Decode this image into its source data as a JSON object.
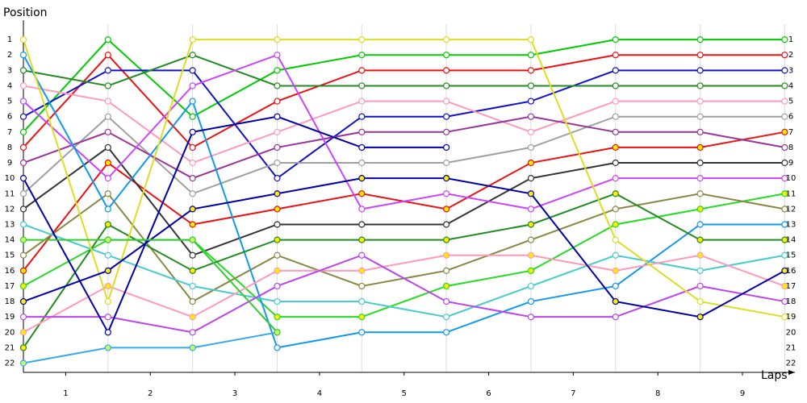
{
  "chart_data": {
    "type": "line",
    "y_axis_label": "Position",
    "x_axis_label": "Laps",
    "x": [
      0,
      1,
      2,
      3,
      4,
      5,
      6,
      7,
      8,
      9
    ],
    "xlim": [
      0,
      9.12
    ],
    "xticks": [
      {
        "value": 0.5,
        "label": "1"
      },
      {
        "value": 1.5,
        "label": "2"
      },
      {
        "value": 2.5,
        "label": "3"
      },
      {
        "value": 3.5,
        "label": "4"
      },
      {
        "value": 4.5,
        "label": "5"
      },
      {
        "value": 5.5,
        "label": "6"
      },
      {
        "value": 6.5,
        "label": "7"
      },
      {
        "value": 7.5,
        "label": "8"
      },
      {
        "value": 8.5,
        "label": "9"
      }
    ],
    "ylim": [
      22.6,
      0
    ],
    "yticks": [
      1,
      2,
      3,
      4,
      5,
      6,
      7,
      8,
      9,
      10,
      11,
      12,
      13,
      14,
      15,
      16,
      17,
      18,
      19,
      20,
      21,
      22
    ],
    "grid": true,
    "series": [
      {
        "color": "#00cc00",
        "marker_fill": "#ffffff",
        "values": [
          7,
          1,
          6,
          3,
          2,
          2,
          2,
          1,
          1,
          1
        ]
      },
      {
        "color": "#ee1111",
        "marker_fill": "#ffffff",
        "values": [
          8,
          2,
          8,
          5,
          3,
          3,
          3,
          2,
          2,
          2
        ]
      },
      {
        "color": "#1111cc",
        "marker_fill": "#ffffff",
        "values": [
          6,
          3,
          3,
          10,
          6,
          6,
          5,
          3,
          3,
          3
        ]
      },
      {
        "color": "#228b22",
        "marker_fill": "#ffffff",
        "values": [
          3,
          4,
          2,
          4,
          4,
          4,
          4,
          4,
          4,
          4
        ]
      },
      {
        "color": "#ff99bb",
        "marker_fill": "#ffffff",
        "values": [
          4,
          5,
          9,
          7,
          5,
          5,
          7,
          5,
          5,
          5
        ]
      },
      {
        "color": "#a0a0a0",
        "marker_fill": "#ffffff",
        "values": [
          11,
          6,
          11,
          9,
          9,
          9,
          8,
          6,
          6,
          6
        ]
      },
      {
        "color": "#ee1111",
        "marker_fill": "#ffee00",
        "values": [
          16,
          9,
          13,
          12,
          11,
          12,
          9,
          8,
          8,
          7
        ]
      },
      {
        "color": "#993399",
        "marker_fill": "#ffffff",
        "values": [
          9,
          7,
          10,
          8,
          7,
          7,
          6,
          7,
          7,
          8
        ]
      },
      {
        "color": "#333333",
        "marker_fill": "#ffffff",
        "values": [
          12,
          8,
          15,
          13,
          13,
          13,
          10,
          9,
          9,
          9
        ]
      },
      {
        "color": "#cc44ff",
        "marker_fill": "#ffffff",
        "values": [
          5,
          10,
          4,
          2,
          12,
          11,
          12,
          10,
          10,
          10
        ]
      },
      {
        "color": "#22dd22",
        "marker_fill": "#ffee00",
        "values": [
          17,
          14,
          14,
          19,
          19,
          17,
          16,
          13,
          12,
          11
        ]
      },
      {
        "color": "#888844",
        "marker_fill": "#ffffff",
        "values": [
          15,
          11,
          18,
          15,
          17,
          16,
          14,
          12,
          11,
          12
        ]
      },
      {
        "color": "#1199ee",
        "marker_fill": "#ffffff",
        "values": [
          2,
          12,
          5,
          21,
          20,
          20,
          18,
          17,
          13,
          13
        ]
      },
      {
        "color": "#228b22",
        "marker_fill": "#ffee00",
        "values": [
          21,
          13,
          16,
          14,
          14,
          14,
          13,
          11,
          14,
          14
        ]
      },
      {
        "color": "#44cccc",
        "marker_fill": "#ffffff",
        "values": [
          13,
          15,
          17,
          18,
          18,
          19,
          17,
          15,
          16,
          15
        ]
      },
      {
        "color": "#ff99bb",
        "marker_fill": "#ffee00",
        "values": [
          20,
          17,
          19,
          16,
          16,
          15,
          15,
          16,
          15,
          17
        ]
      },
      {
        "color": "#bb44ee",
        "marker_fill": "#ffffff",
        "values": [
          19,
          19,
          20,
          17,
          15,
          18,
          19,
          19,
          17,
          18
        ]
      },
      {
        "color": "#dddd22",
        "marker_fill": "#ffffff",
        "values": [
          1,
          18,
          1,
          1,
          1,
          1,
          1,
          14,
          18,
          19
        ]
      },
      {
        "color": "#0000aa",
        "marker_fill": "#ffee00",
        "values": [
          18,
          16,
          12,
          11,
          10,
          10,
          11,
          18,
          19,
          16
        ]
      },
      {
        "color": "#0000aa",
        "marker_fill": "#ffffff",
        "values": [
          10,
          20,
          7,
          6,
          8,
          8,
          null,
          null,
          null,
          null
        ]
      },
      {
        "color": "#33aaee",
        "marker_fill": "#ccff66",
        "values": [
          22,
          21,
          21,
          20,
          null,
          null,
          null,
          null,
          null,
          null
        ]
      },
      {
        "color": "#33cc33",
        "marker_fill": "#ccff66",
        "values": [
          14,
          14,
          14,
          20,
          null,
          null,
          null,
          null,
          null,
          null
        ]
      }
    ]
  }
}
